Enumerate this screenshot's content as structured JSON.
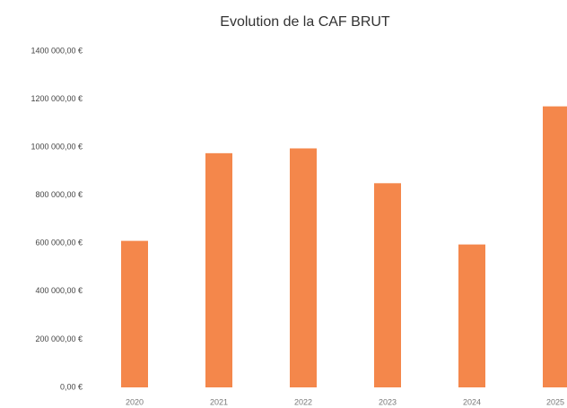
{
  "chart_data": {
    "type": "bar",
    "title": "Evolution de la CAF BRUT",
    "categories": [
      "2020",
      "2021",
      "2022",
      "2023",
      "2024",
      "2025"
    ],
    "values": [
      610000,
      975000,
      995000,
      850000,
      595000,
      1170000
    ],
    "color": "#f4874b",
    "ylim": [
      0,
      1400000
    ],
    "yticks": [
      {
        "value": 0,
        "label": "0,00 €"
      },
      {
        "value": 200000,
        "label": "200 000,00 €"
      },
      {
        "value": 400000,
        "label": "400 000,00 €"
      },
      {
        "value": 600000,
        "label": "600 000,00 €"
      },
      {
        "value": 800000,
        "label": "800 000,00 €"
      },
      {
        "value": 1000000,
        "label": "1000 000,00 €"
      },
      {
        "value": 1200000,
        "label": "1200 000,00 €"
      },
      {
        "value": 1400000,
        "label": "1400 000,00 €"
      }
    ],
    "grid": false
  }
}
